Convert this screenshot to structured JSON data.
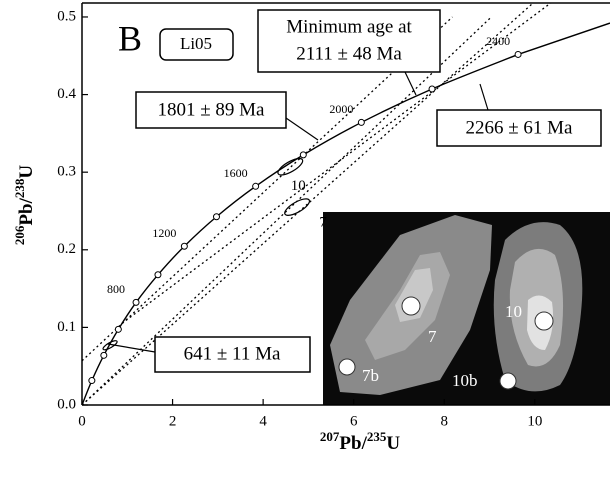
{
  "chart_data": {
    "type": "concordia",
    "panel_label": "B",
    "sample": "Li05",
    "xlabel": [
      "207",
      "Pb/",
      "235",
      "U"
    ],
    "ylabel": [
      "206",
      "Pb/",
      "238",
      "U"
    ],
    "xlim": [
      0,
      11.66
    ],
    "ylim": [
      0,
      0.518
    ],
    "xticks": [
      0,
      2,
      4,
      6,
      8,
      10
    ],
    "yticks": [
      {
        "value": 0,
        "label": "0.0"
      },
      0.1,
      0.2,
      0.3,
      0.4,
      0.5
    ],
    "concordia": {
      "color": "#000000",
      "x": [
        0,
        0.2177,
        0.482,
        0.8027,
        1.1935,
        1.6774,
        2.2603,
        2.9702,
        3.8346,
        4.887,
        6.169,
        7.73,
        9.63
      ],
      "values": [
        0,
        0.0315,
        0.064,
        0.0975,
        0.1322,
        0.1678,
        0.2046,
        0.2426,
        0.2818,
        0.3223,
        0.3641,
        0.4072,
        0.4517
      ],
      "ages": [
        null,
        null,
        null,
        null,
        800,
        null,
        1200,
        null,
        1600,
        null,
        2000,
        null,
        2400
      ]
    },
    "discordia": [
      {
        "x": [
          0,
          8.18
        ],
        "values": [
          0.057,
          0.5
        ]
      },
      {
        "x": [
          0,
          9.04
        ],
        "values": [
          0,
          0.5
        ]
      },
      {
        "x": [
          0,
          10.0
        ],
        "values": [
          0,
          0.52
        ]
      },
      {
        "x": [
          0.88,
          11.66
        ],
        "values": [
          0.105,
          0.575
        ]
      }
    ],
    "ellipses": [
      {
        "label": "10",
        "x": 4.6,
        "y": 0.307
      },
      {
        "label": "7",
        "x": 4.75,
        "y": 0.255
      },
      {
        "x": 0.62,
        "y": 0.077
      }
    ],
    "annotations": {
      "min_age": [
        "Minimum age at",
        "2111 ± 48 Ma"
      ],
      "upper_1": "1801 ± 89 Ma",
      "upper_2": "2266 ± 61 Ma",
      "lower": "641 ± 11 Ma"
    },
    "inset": {
      "spots": [
        "7",
        "10",
        "7b",
        "10b"
      ]
    }
  }
}
